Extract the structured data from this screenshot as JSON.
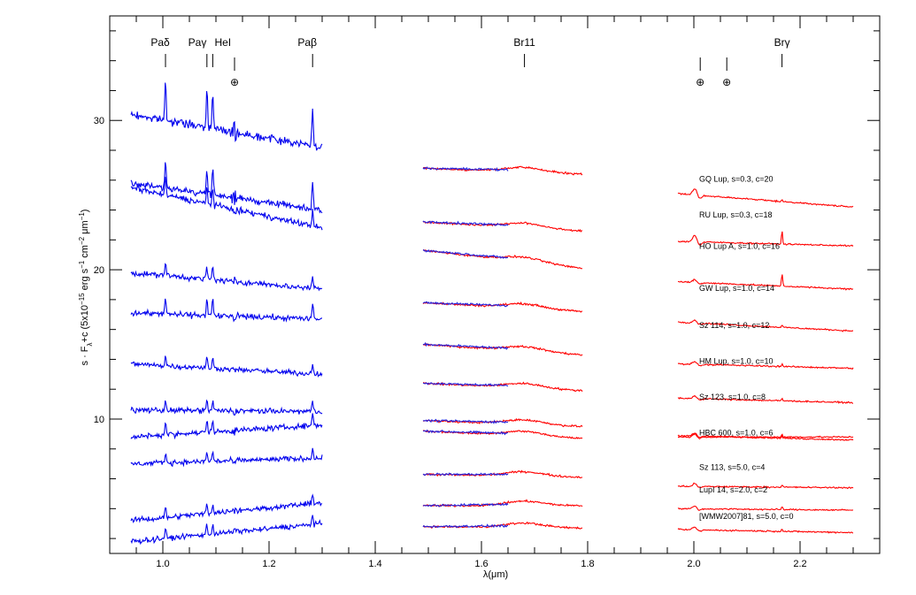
{
  "chart_data": {
    "type": "line",
    "title": "",
    "xlabel": "λ(μm)",
    "ylabel_parts": [
      "s · F",
      "λ",
      "+c (5x10",
      "−15",
      " erg s",
      "−1",
      " cm",
      "−2",
      " μm",
      "−1",
      ")"
    ],
    "xlim": [
      0.9,
      2.35
    ],
    "ylim": [
      1,
      37
    ],
    "x_ticks": [
      "1.0",
      "1.2",
      "1.4",
      "1.6",
      "1.8",
      "2.0",
      "2.2"
    ],
    "x_tick_values": [
      1.0,
      1.2,
      1.4,
      1.6,
      1.8,
      2.0,
      2.2
    ],
    "y_ticks": [
      "10",
      "20",
      "30"
    ],
    "y_tick_values": [
      10,
      20,
      30
    ],
    "line_markers": [
      {
        "label": "Paδ",
        "x": 1.005
      },
      {
        "label": "Paγ",
        "x": 1.094
      },
      {
        "label": "HeI",
        "x": 1.083
      },
      {
        "label": "Paβ",
        "x": 1.282
      },
      {
        "label": "Br11",
        "x": 1.681
      },
      {
        "label": "Brγ",
        "x": 2.166
      }
    ],
    "telluric_markers": [
      {
        "symbol": "⊕",
        "x": 1.135
      },
      {
        "symbol": "⊕",
        "x": 2.012
      },
      {
        "symbol": "⊕",
        "x": 2.062
      }
    ],
    "colors": {
      "J": "#0000ee",
      "H_blue": "#2222dd",
      "HK": "#ff0000",
      "axis": "#000000"
    },
    "series": [
      {
        "name": "GQ Lup, s=0.3, c=20",
        "label_x": 2.01,
        "J": [
          1.2,
          30.4,
          28.2
        ],
        "H": [
          26.8,
          26.4
        ],
        "K": [
          25.1,
          24.2
        ]
      },
      {
        "name": "RU Lup, s=0.3, c=18",
        "label_x": 2.01,
        "J": [
          0.8,
          25.8,
          24.0
        ],
        "H": [
          23.2,
          22.6
        ],
        "K": [
          21.9,
          21.6
        ]
      },
      {
        "name": "HO Lup A, s=1.0, c=16",
        "label_x": 2.01,
        "J": [
          0.5,
          25.5,
          22.8
        ],
        "H": [
          21.3,
          20.1
        ],
        "K": [
          19.2,
          18.7
        ]
      },
      {
        "name": "GW Lup, s=1.0, c=14",
        "label_x": 2.01,
        "J": [
          0.4,
          19.8,
          18.7
        ],
        "H": [
          17.8,
          17.2
        ],
        "K": [
          16.5,
          15.9
        ]
      },
      {
        "name": "Sz 114, s=1.0, c=12",
        "label_x": 2.01,
        "J": [
          0.5,
          17.1,
          16.7
        ],
        "H": [
          15.0,
          14.3
        ],
        "K": [
          13.7,
          13.4
        ]
      },
      {
        "name": "HM Lup, s=1.0, c=10",
        "label_x": 2.01,
        "J": [
          0.3,
          13.7,
          13.0
        ],
        "H": [
          12.4,
          11.9
        ],
        "K": [
          11.4,
          11.1
        ]
      },
      {
        "name": "Sz 123, s=1.0, c=8",
        "label_x": 2.01,
        "J": [
          0.3,
          10.6,
          10.5
        ],
        "H": [
          9.9,
          9.5
        ],
        "K": [
          8.8,
          8.8
        ]
      },
      {
        "name": "HBC 600, s=1.0, c=6",
        "label_x": 2.01,
        "J": [
          0.4,
          8.8,
          9.6
        ],
        "H": [
          9.2,
          8.7
        ],
        "K": [
          8.9,
          8.6
        ]
      },
      {
        "name": "Sz 113, s=5.0, c=4",
        "label_x": 2.01,
        "J": [
          0.3,
          7.0,
          7.4
        ],
        "H": [
          6.3,
          6.1
        ],
        "K": [
          5.5,
          5.4
        ]
      },
      {
        "name": "LupI 14, s=2.0, c=2",
        "label_x": 2.01,
        "J": [
          0.3,
          3.2,
          4.4
        ],
        "H": [
          4.2,
          4.2
        ],
        "K": [
          4.0,
          3.9
        ]
      },
      {
        "name": "[WMW2007]81, s=5.0, c=0",
        "label_x": 2.01,
        "J": [
          0.3,
          1.8,
          3.0
        ],
        "H": [
          2.8,
          2.7
        ],
        "K": [
          2.6,
          2.4
        ]
      }
    ]
  }
}
